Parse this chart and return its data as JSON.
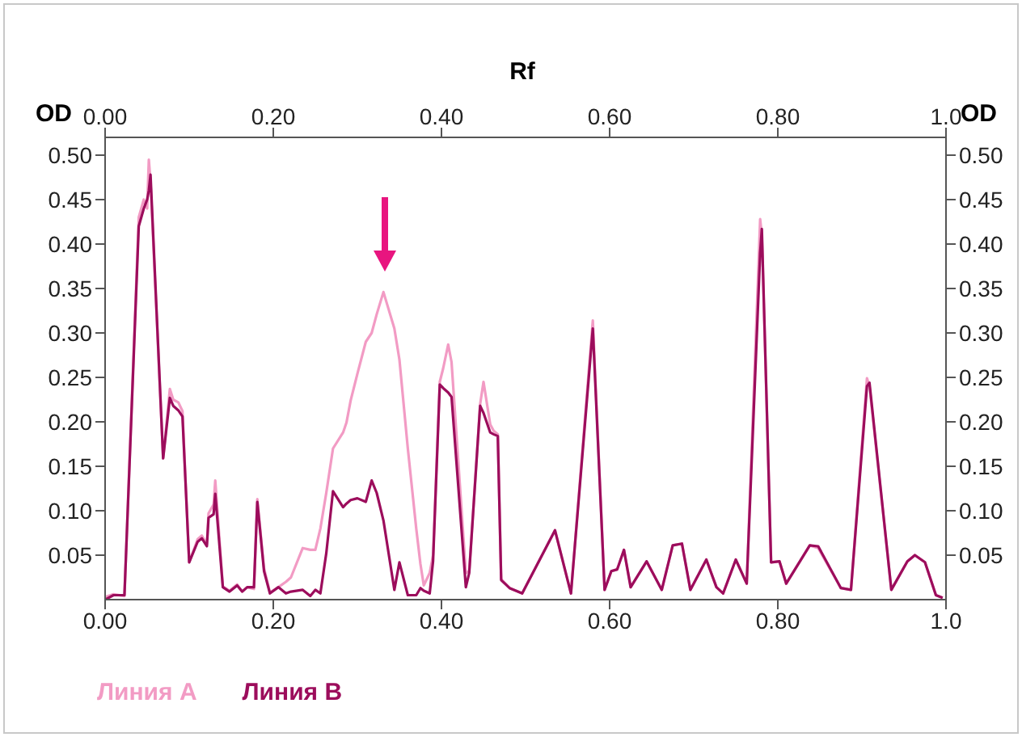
{
  "chart_data": {
    "type": "line",
    "x2label": "Rf",
    "ylabel": "OD",
    "y2label": "OD",
    "x": [
      0,
      0.01,
      0.023,
      0.04,
      0.046,
      0.05,
      0.052,
      0.054,
      0.069,
      0.077,
      0.081,
      0.087,
      0.092,
      0.1,
      0.11,
      0.115,
      0.121,
      0.123,
      0.129,
      0.131,
      0.14,
      0.148,
      0.157,
      0.163,
      0.169,
      0.177,
      0.181,
      0.189,
      0.196,
      0.206,
      0.215,
      0.221,
      0.235,
      0.244,
      0.25,
      0.256,
      0.263,
      0.271,
      0.283,
      0.287,
      0.292,
      0.3,
      0.31,
      0.317,
      0.323,
      0.331,
      0.344,
      0.35,
      0.36,
      0.37,
      0.375,
      0.379,
      0.386,
      0.39,
      0.398,
      0.402,
      0.408,
      0.412,
      0.429,
      0.433,
      0.446,
      0.45,
      0.458,
      0.462,
      0.467,
      0.471,
      0.481,
      0.496,
      0.535,
      0.554,
      0.58,
      0.594,
      0.602,
      0.609,
      0.617,
      0.625,
      0.644,
      0.662,
      0.675,
      0.686,
      0.696,
      0.715,
      0.727,
      0.735,
      0.75,
      0.763,
      0.779,
      0.781,
      0.792,
      0.802,
      0.81,
      0.838,
      0.848,
      0.875,
      0.887,
      0.906,
      0.909,
      0.935,
      0.954,
      0.963,
      0.975,
      0.988,
      0.996
    ],
    "series": [
      {
        "name": "Линия A",
        "color": "#f29bc4",
        "values": [
          0.003,
          0.006,
          0.004,
          0.43,
          0.45,
          0.44,
          0.495,
          0.47,
          0.159,
          0.237,
          0.225,
          0.222,
          0.212,
          0.042,
          0.068,
          0.072,
          0.062,
          0.097,
          0.107,
          0.134,
          0.015,
          0.01,
          0.017,
          0.009,
          0.014,
          0.012,
          0.113,
          0.035,
          0.008,
          0.014,
          0.02,
          0.025,
          0.058,
          0.056,
          0.056,
          0.08,
          0.12,
          0.17,
          0.188,
          0.199,
          0.224,
          0.254,
          0.29,
          0.3,
          0.321,
          0.346,
          0.305,
          0.27,
          0.17,
          0.08,
          0.04,
          0.016,
          0.03,
          0.05,
          0.245,
          0.26,
          0.287,
          0.267,
          0.03,
          0.032,
          0.22,
          0.245,
          0.197,
          0.19,
          0.186,
          0.023,
          0.013,
          0.007,
          0.078,
          0.007,
          0.314,
          0.011,
          0.032,
          0.034,
          0.056,
          0.014,
          0.043,
          0.011,
          0.061,
          0.063,
          0.011,
          0.045,
          0.014,
          0.007,
          0.045,
          0.018,
          0.428,
          0.41,
          0.042,
          0.043,
          0.018,
          0.061,
          0.058,
          0.013,
          0.011,
          0.249,
          0.24,
          0.011,
          0.043,
          0.05,
          0.042,
          0.005,
          0.002
        ]
      },
      {
        "name": "Линия B",
        "color": "#9c0d5c",
        "values": [
          0,
          0.005,
          0.005,
          0.42,
          0.44,
          0.45,
          0.46,
          0.478,
          0.159,
          0.227,
          0.218,
          0.213,
          0.206,
          0.042,
          0.065,
          0.069,
          0.06,
          0.092,
          0.096,
          0.119,
          0.014,
          0.009,
          0.016,
          0.009,
          0.014,
          0.014,
          0.11,
          0.032,
          0.007,
          0.014,
          0.007,
          0.009,
          0.011,
          0.004,
          0.011,
          0.007,
          0.052,
          0.122,
          0.104,
          0.108,
          0.112,
          0.114,
          0.11,
          0.134,
          0.12,
          0.089,
          0.011,
          0.042,
          0.005,
          0.005,
          0.013,
          0.01,
          0.007,
          0.043,
          0.242,
          0.238,
          0.233,
          0.228,
          0.014,
          0.03,
          0.218,
          0.21,
          0.188,
          0.186,
          0.184,
          0.022,
          0.013,
          0.007,
          0.078,
          0.007,
          0.305,
          0.011,
          0.032,
          0.034,
          0.056,
          0.014,
          0.043,
          0.011,
          0.061,
          0.063,
          0.011,
          0.045,
          0.014,
          0.007,
          0.045,
          0.018,
          0.39,
          0.417,
          0.042,
          0.043,
          0.018,
          0.061,
          0.06,
          0.013,
          0.011,
          0.24,
          0.244,
          0.011,
          0.043,
          0.05,
          0.042,
          0.005,
          0.002
        ]
      }
    ],
    "xlim": [
      0,
      1
    ],
    "x2lim": [
      0,
      1
    ],
    "xticks": [
      {
        "value": 0,
        "label": "0.00"
      },
      {
        "value": 0.2,
        "label": "0.20"
      },
      {
        "value": 0.4,
        "label": "0.40"
      },
      {
        "value": 0.6,
        "label": "0.60"
      },
      {
        "value": 0.8,
        "label": "0.80"
      },
      {
        "value": 1,
        "label": "1.0"
      }
    ],
    "x2ticks": [
      {
        "value": 0,
        "label": "0.00"
      },
      {
        "value": 0.2,
        "label": "0.20"
      },
      {
        "value": 0.4,
        "label": "0.40"
      },
      {
        "value": 0.6,
        "label": "0.60"
      },
      {
        "value": 0.8,
        "label": "0.80"
      },
      {
        "value": 1,
        "label": "1.0"
      }
    ],
    "ylim": [
      0,
      0.52
    ],
    "y2lim": [
      0,
      0.52
    ],
    "yticks": [
      {
        "value": 0.05,
        "label": "0.05"
      },
      {
        "value": 0.1,
        "label": "0.10"
      },
      {
        "value": 0.15,
        "label": "0.15"
      },
      {
        "value": 0.2,
        "label": "0.20"
      },
      {
        "value": 0.25,
        "label": "0.25"
      },
      {
        "value": 0.3,
        "label": "0.30"
      },
      {
        "value": 0.35,
        "label": "0.35"
      },
      {
        "value": 0.4,
        "label": "0.40"
      },
      {
        "value": 0.45,
        "label": "0.45"
      },
      {
        "value": 0.5,
        "label": "0.50"
      }
    ],
    "y2ticks": [
      {
        "value": 0.05,
        "label": "0.05"
      },
      {
        "value": 0.1,
        "label": "0.10"
      },
      {
        "value": 0.15,
        "label": "0.15"
      },
      {
        "value": 0.2,
        "label": "0.20"
      },
      {
        "value": 0.25,
        "label": "0.25"
      },
      {
        "value": 0.3,
        "label": "0.30"
      },
      {
        "value": 0.35,
        "label": "0.35"
      },
      {
        "value": 0.4,
        "label": "0.40"
      },
      {
        "value": 0.45,
        "label": "0.45"
      },
      {
        "value": 0.5,
        "label": "0.50"
      }
    ],
    "legend": "bottom left",
    "marker": "none",
    "line_style": "solid",
    "grid": false
  }
}
